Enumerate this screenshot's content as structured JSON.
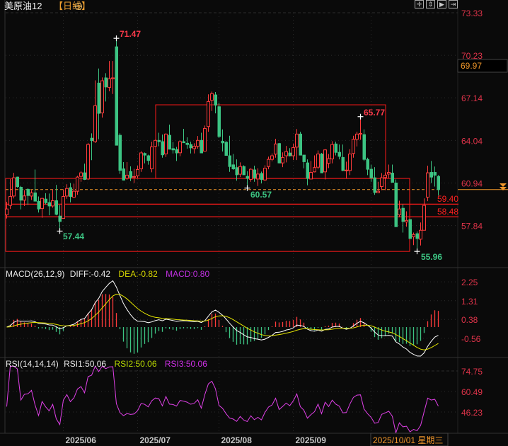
{
  "header": {
    "symbol": "美原油12",
    "period": "【日线】",
    "zoom_icon": "circle-minus-icon"
  },
  "toolbar": {
    "icons": [
      "crosshair-icon",
      "fit-vertical-icon",
      "play-right-icon",
      "scroll-to-end-icon"
    ]
  },
  "cursor_price": "69.97",
  "cursor_date": "2025/10/01 星期三",
  "colors": {
    "up": "#ff3b3b",
    "down": "#3cc483",
    "box": "#ff1a1a",
    "last_price": "#f0962a",
    "diff": "#ffffff",
    "dea": "#e8e800",
    "rsi": "#e040e8",
    "axis": "#e0344a"
  },
  "chart_data": [
    {
      "type": "candlestick",
      "title": "美原油12【日线】",
      "price_ticks": [
        "73.33",
        "70.23",
        "67.14",
        "64.04",
        "60.94",
        "57.84"
      ],
      "ylim": [
        55.5,
        73.6
      ],
      "x_tick_labels": [
        "2025/06",
        "2025/07",
        "2025/08",
        "2025/09"
      ],
      "last_price": 60.46,
      "annotations": {
        "high": "71.47",
        "low_may": "57.44",
        "low_aug": "60.57",
        "high_sep": "65.77",
        "low_oct": "55.96",
        "line_a": "59.40",
        "line_b": "58.48"
      },
      "rect_zones": [
        {
          "top": 66.63,
          "bottom": 61.27
        },
        {
          "top": 61.27,
          "bottom": 55.96
        }
      ],
      "ohlc": [
        [
          58.62,
          59.57,
          58.36,
          59.05
        ],
        [
          59.31,
          61.23,
          59.05,
          59.96
        ],
        [
          59.99,
          61.68,
          59.82,
          61.32
        ],
        [
          61.37,
          61.4,
          60.6,
          60.68
        ],
        [
          60.63,
          60.73,
          59.02,
          59.69
        ],
        [
          59.69,
          60.42,
          59.27,
          60.0
        ],
        [
          60.48,
          60.55,
          59.34,
          60.03
        ],
        [
          59.99,
          60.42,
          59.7,
          60.22
        ],
        [
          60.22,
          61.92,
          59.62,
          59.62
        ],
        [
          59.6,
          59.96,
          58.79,
          59.05
        ],
        [
          59.08,
          59.86,
          58.41,
          59.82
        ],
        [
          59.77,
          60.2,
          59.39,
          59.51
        ],
        [
          59.51,
          60.17,
          58.59,
          59.27
        ],
        [
          59.27,
          60.48,
          59.14,
          59.65
        ],
        [
          59.65,
          60.8,
          58.59,
          58.66
        ],
        [
          58.53,
          59.34,
          57.44,
          58.14
        ],
        [
          58.36,
          60.48,
          58.36,
          59.96
        ],
        [
          59.99,
          60.85,
          59.79,
          60.54
        ],
        [
          60.6,
          60.94,
          59.53,
          59.96
        ],
        [
          59.91,
          60.89,
          59.86,
          60.34
        ],
        [
          60.34,
          61.46,
          60.08,
          61.37
        ],
        [
          61.42,
          61.8,
          61.03,
          61.68
        ],
        [
          61.68,
          62.35,
          61.16,
          61.2
        ],
        [
          61.23,
          63.86,
          61.16,
          63.74
        ],
        [
          64.2,
          64.55,
          62.6,
          64.03
        ],
        [
          63.95,
          68.41,
          63.86,
          66.56
        ],
        [
          68.21,
          69.27,
          64.12,
          66.01
        ],
        [
          66.04,
          68.62,
          65.7,
          68.38
        ],
        [
          68.59,
          68.93,
          66.87,
          67.93
        ],
        [
          67.9,
          69.82,
          67.61,
          68.53
        ],
        [
          68.53,
          69.82,
          67.42,
          68.59
        ],
        [
          70.85,
          71.47,
          63.69,
          63.69
        ],
        [
          64.41,
          64.55,
          61.6,
          61.86
        ],
        [
          61.97,
          62.46,
          61.12,
          61.15
        ],
        [
          61.29,
          62.46,
          61.17,
          61.51
        ],
        [
          61.77,
          62.15,
          61.08,
          61.34
        ],
        [
          61.4,
          61.97,
          60.94,
          61.41
        ],
        [
          61.46,
          62.2,
          61.29,
          61.92
        ],
        [
          61.97,
          63.26,
          61.75,
          63.13
        ],
        [
          63.09,
          63.16,
          62.37,
          62.97
        ],
        [
          62.92,
          63.0,
          62.27,
          62.58
        ],
        [
          61.97,
          63.95,
          61.72,
          63.57
        ],
        [
          63.61,
          64.09,
          63.61,
          64.04
        ],
        [
          64.04,
          64.6,
          63.61,
          63.95
        ],
        [
          63.95,
          64.47,
          62.78,
          62.99
        ],
        [
          63.06,
          64.55,
          62.83,
          64.5
        ],
        [
          64.41,
          65.19,
          63.4,
          63.4
        ],
        [
          63.44,
          63.92,
          63.09,
          63.35
        ],
        [
          63.38,
          63.57,
          62.54,
          63.13
        ],
        [
          63.14,
          64.04,
          62.89,
          63.95
        ],
        [
          63.95,
          64.88,
          63.87,
          63.87
        ],
        [
          63.83,
          64.26,
          63.44,
          63.74
        ],
        [
          63.74,
          63.95,
          63.09,
          63.5
        ],
        [
          63.44,
          63.83,
          63.09,
          63.61
        ],
        [
          63.61,
          64.36,
          63.44,
          64.04
        ],
        [
          64.04,
          64.6,
          63.13,
          63.13
        ],
        [
          63.26,
          65.12,
          63.26,
          64.91
        ],
        [
          65.05,
          67.39,
          64.67,
          66.87
        ],
        [
          66.96,
          67.59,
          66.18,
          67.44
        ],
        [
          67.35,
          67.56,
          66.01,
          66.61
        ],
        [
          66.49,
          66.79,
          64.21,
          64.33
        ],
        [
          63.98,
          64.84,
          63.23,
          63.86
        ],
        [
          63.9,
          64.0,
          62.92,
          62.95
        ],
        [
          62.92,
          64.38,
          61.75,
          62.14
        ],
        [
          62.26,
          63.05,
          61.89,
          61.97
        ],
        [
          62.06,
          62.66,
          61.11,
          61.54
        ],
        [
          61.58,
          62.44,
          61.37,
          62.14
        ],
        [
          62.14,
          62.23,
          61.51,
          61.54
        ],
        [
          61.42,
          61.8,
          60.57,
          61.28
        ],
        [
          61.2,
          62.01,
          61.03,
          61.94
        ],
        [
          61.89,
          62.2,
          61.03,
          61.32
        ],
        [
          61.23,
          62.01,
          60.72,
          61.59
        ],
        [
          61.63,
          61.77,
          60.91,
          61.2
        ],
        [
          61.16,
          62.23,
          61.08,
          62.02
        ],
        [
          62.14,
          62.86,
          61.94,
          62.66
        ],
        [
          62.66,
          63.09,
          62.52,
          62.92
        ],
        [
          63.04,
          64.15,
          62.78,
          63.78
        ],
        [
          63.81,
          63.86,
          62.37,
          62.4
        ],
        [
          62.4,
          63.17,
          62.09,
          62.8
        ],
        [
          62.92,
          63.64,
          62.44,
          63.23
        ],
        [
          63.12,
          63.48,
          62.88,
          62.92
        ],
        [
          62.92,
          63.81,
          62.61,
          63.52
        ],
        [
          63.55,
          64.87,
          62.61,
          64.5
        ],
        [
          64.5,
          64.67,
          62.97,
          62.97
        ],
        [
          62.97,
          62.97,
          62.01,
          62.49
        ],
        [
          62.4,
          62.66,
          60.77,
          61.28
        ],
        [
          61.23,
          62.54,
          61.2,
          61.71
        ],
        [
          61.75,
          62.95,
          61.71,
          62.06
        ],
        [
          62.09,
          63.31,
          61.94,
          63.05
        ],
        [
          63.05,
          63.12,
          61.68,
          61.68
        ],
        [
          61.75,
          63.4,
          61.2,
          63.35
        ],
        [
          62.37,
          63.05,
          62.02,
          62.71
        ],
        [
          62.69,
          63.98,
          62.37,
          63.74
        ],
        [
          63.78,
          63.95,
          62.95,
          63.17
        ],
        [
          63.17,
          63.74,
          62.66,
          62.88
        ],
        [
          62.8,
          63.74,
          61.8,
          61.85
        ],
        [
          61.85,
          62.49,
          61.28,
          61.88
        ],
        [
          61.85,
          63.4,
          61.51,
          63.05
        ],
        [
          63.09,
          64.38,
          62.78,
          64.12
        ],
        [
          64.12,
          64.67,
          63.6,
          64.5
        ],
        [
          64.52,
          65.77,
          64.08,
          64.55
        ],
        [
          64.46,
          64.84,
          62.54,
          62.66
        ],
        [
          62.66,
          62.78,
          61.51,
          61.94
        ],
        [
          61.94,
          62.28,
          61.03,
          61.32
        ],
        [
          61.32,
          62.09,
          60.08,
          60.25
        ],
        [
          60.24,
          61.03,
          60.2,
          60.34
        ],
        [
          60.68,
          61.66,
          60.42,
          61.32
        ],
        [
          61.34,
          61.71,
          60.42,
          61.51
        ],
        [
          61.59,
          62.28,
          61.28,
          61.71
        ],
        [
          61.66,
          62.28,
          60.99,
          60.99
        ],
        [
          60.94,
          61.2,
          57.76,
          57.76
        ],
        [
          58.62,
          59.65,
          58.45,
          59.05
        ],
        [
          59.1,
          59.39,
          57.33,
          58.14
        ],
        [
          58.1,
          58.88,
          57.76,
          58.22
        ],
        [
          58.28,
          58.28,
          56.9,
          56.9
        ],
        [
          57.02,
          57.33,
          56.42,
          57.19
        ],
        [
          57.25,
          57.42,
          55.96,
          56.9
        ],
        [
          56.85,
          58.07,
          56.39,
          57.5
        ],
        [
          57.5,
          59.82,
          57.5,
          59.31
        ],
        [
          59.91,
          62.2,
          59.62,
          61.68
        ],
        [
          61.71,
          62.54,
          60.94,
          61.37
        ],
        [
          61.71,
          62.14,
          60.68,
          61.51
        ],
        [
          61.42,
          61.51,
          60.03,
          60.46
        ]
      ]
    },
    {
      "type": "bar+line",
      "title": "MACD(26,12,9)",
      "legend": {
        "diff": "DIFF:-0.42",
        "dea": "DEA:-0.82",
        "macd": "MACD:0.80"
      },
      "ticks": [
        "2.25",
        "1.31",
        "0.38",
        "-0.56"
      ],
      "ylim": [
        -1.5,
        2.5
      ]
    },
    {
      "type": "line",
      "title": "RSI(14,14,14)",
      "legend": {
        "rsi1": "RSI1:50.06",
        "rsi2": "RSI2:50.06",
        "rsi3": "RSI3:50.06"
      },
      "ticks": [
        "74.75",
        "60.49",
        "46.23"
      ],
      "ylim": [
        20,
        80
      ]
    }
  ]
}
